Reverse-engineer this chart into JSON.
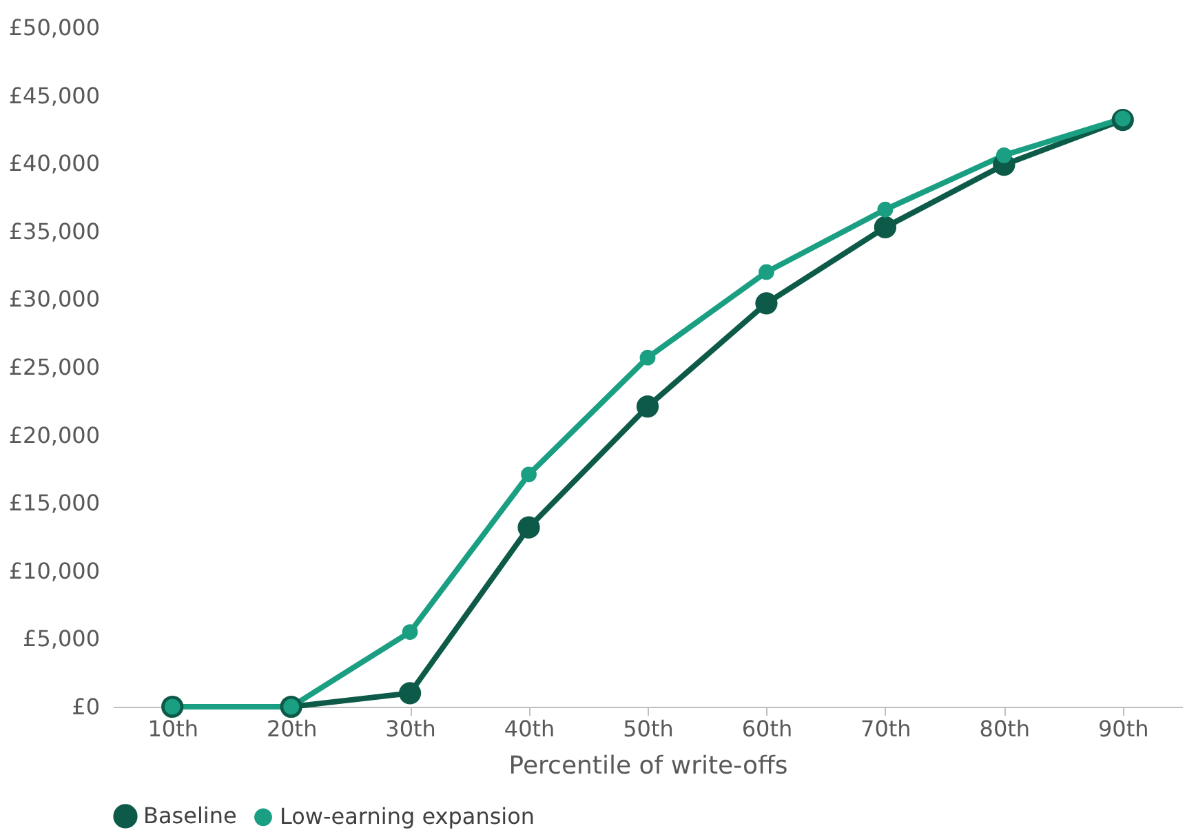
{
  "chart_data": {
    "type": "line",
    "xlabel": "Percentile of write-offs",
    "categories": [
      "10th",
      "20th",
      "30th",
      "40th",
      "50th",
      "60th",
      "70th",
      "80th",
      "90th"
    ],
    "series": [
      {
        "name": "Baseline",
        "color": "#0d5a48",
        "values": [
          0,
          0,
          1000,
          13200,
          22100,
          29700,
          35300,
          39900,
          43200
        ]
      },
      {
        "name": "Low-earning expansion",
        "color": "#1a9f82",
        "values": [
          0,
          0,
          5500,
          17100,
          25700,
          32000,
          36600,
          40600,
          43300
        ]
      }
    ],
    "ylim": [
      0,
      50000
    ],
    "yticks": [
      {
        "value": 0,
        "label": "£0"
      },
      {
        "value": 5000,
        "label": "£5,000"
      },
      {
        "value": 10000,
        "label": "£10,000"
      },
      {
        "value": 15000,
        "label": "£15,000"
      },
      {
        "value": 20000,
        "label": "£20,000"
      },
      {
        "value": 25000,
        "label": "£25,000"
      },
      {
        "value": 30000,
        "label": "£30,000"
      },
      {
        "value": 35000,
        "label": "£35,000"
      },
      {
        "value": 40000,
        "label": "£40,000"
      },
      {
        "value": 45000,
        "label": "£45,000"
      },
      {
        "value": 50000,
        "label": "£50,000"
      }
    ],
    "grid": false,
    "legend": "bottom",
    "marker": "circle",
    "line_style": "solid"
  }
}
